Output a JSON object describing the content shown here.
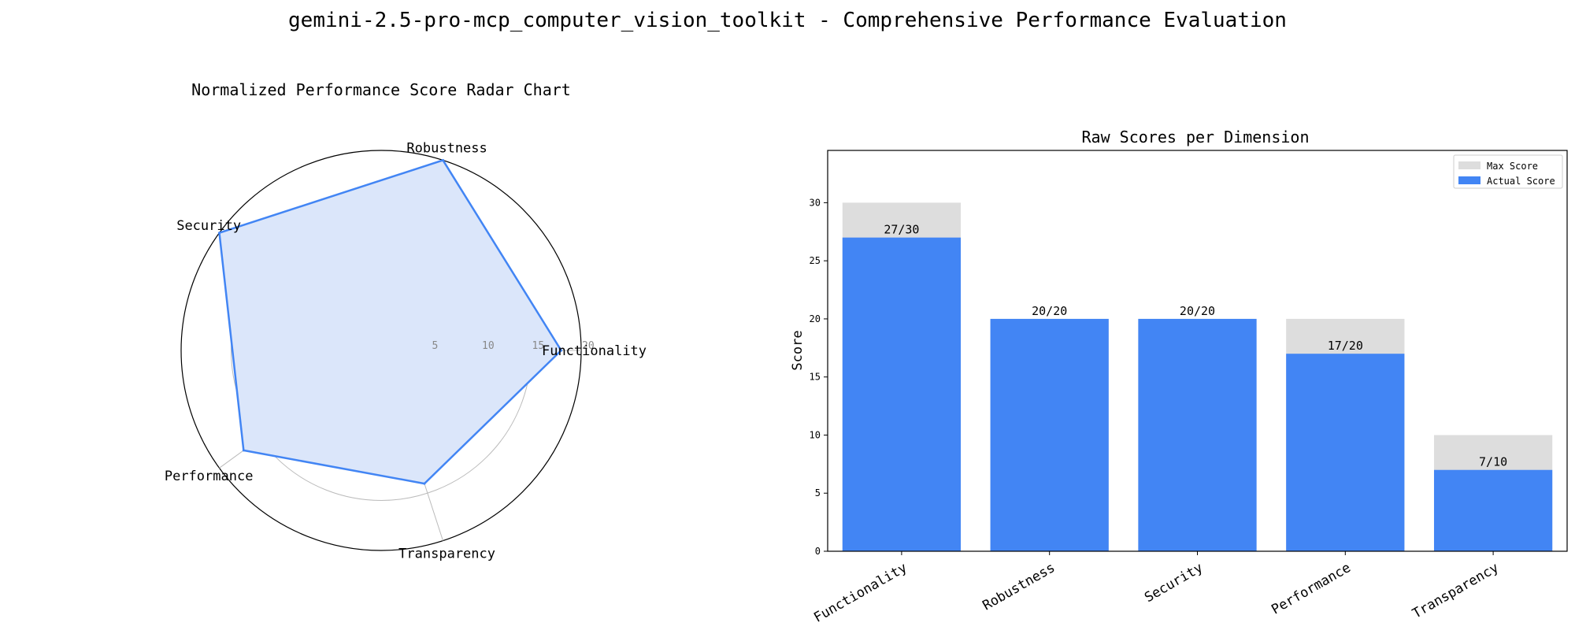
{
  "page_title": "gemini-2.5-pro-mcp_computer_vision_toolkit - Comprehensive Performance Evaluation",
  "colors": {
    "actual": "#4285F4",
    "radar_fill": "#DBE6FA",
    "max": "#DDDDDD",
    "grid": "#BBBBBB"
  },
  "chart_data": [
    {
      "type": "radar",
      "title": "Normalized Performance Score Radar Chart",
      "categories": [
        "Functionality",
        "Robustness",
        "Security",
        "Performance",
        "Transparency"
      ],
      "values": [
        18,
        20,
        20,
        17,
        14
      ],
      "rlim": [
        0,
        20
      ],
      "r_ticks": [
        5,
        10,
        15,
        20
      ],
      "grid": true
    },
    {
      "type": "bar",
      "title": "Raw Scores per Dimension",
      "categories": [
        "Functionality",
        "Robustness",
        "Security",
        "Performance",
        "Transparency"
      ],
      "ylabel": "Score",
      "ylim": [
        0,
        34.5
      ],
      "y_ticks": [
        0,
        5,
        10,
        15,
        20,
        25,
        30
      ],
      "series": [
        {
          "name": "Max Score",
          "values": [
            30,
            20,
            20,
            20,
            10
          ]
        },
        {
          "name": "Actual Score",
          "values": [
            27,
            20,
            20,
            17,
            7
          ]
        }
      ],
      "bar_labels": [
        "27/30",
        "20/20",
        "20/20",
        "17/20",
        "7/10"
      ],
      "legend": "top-right"
    }
  ]
}
